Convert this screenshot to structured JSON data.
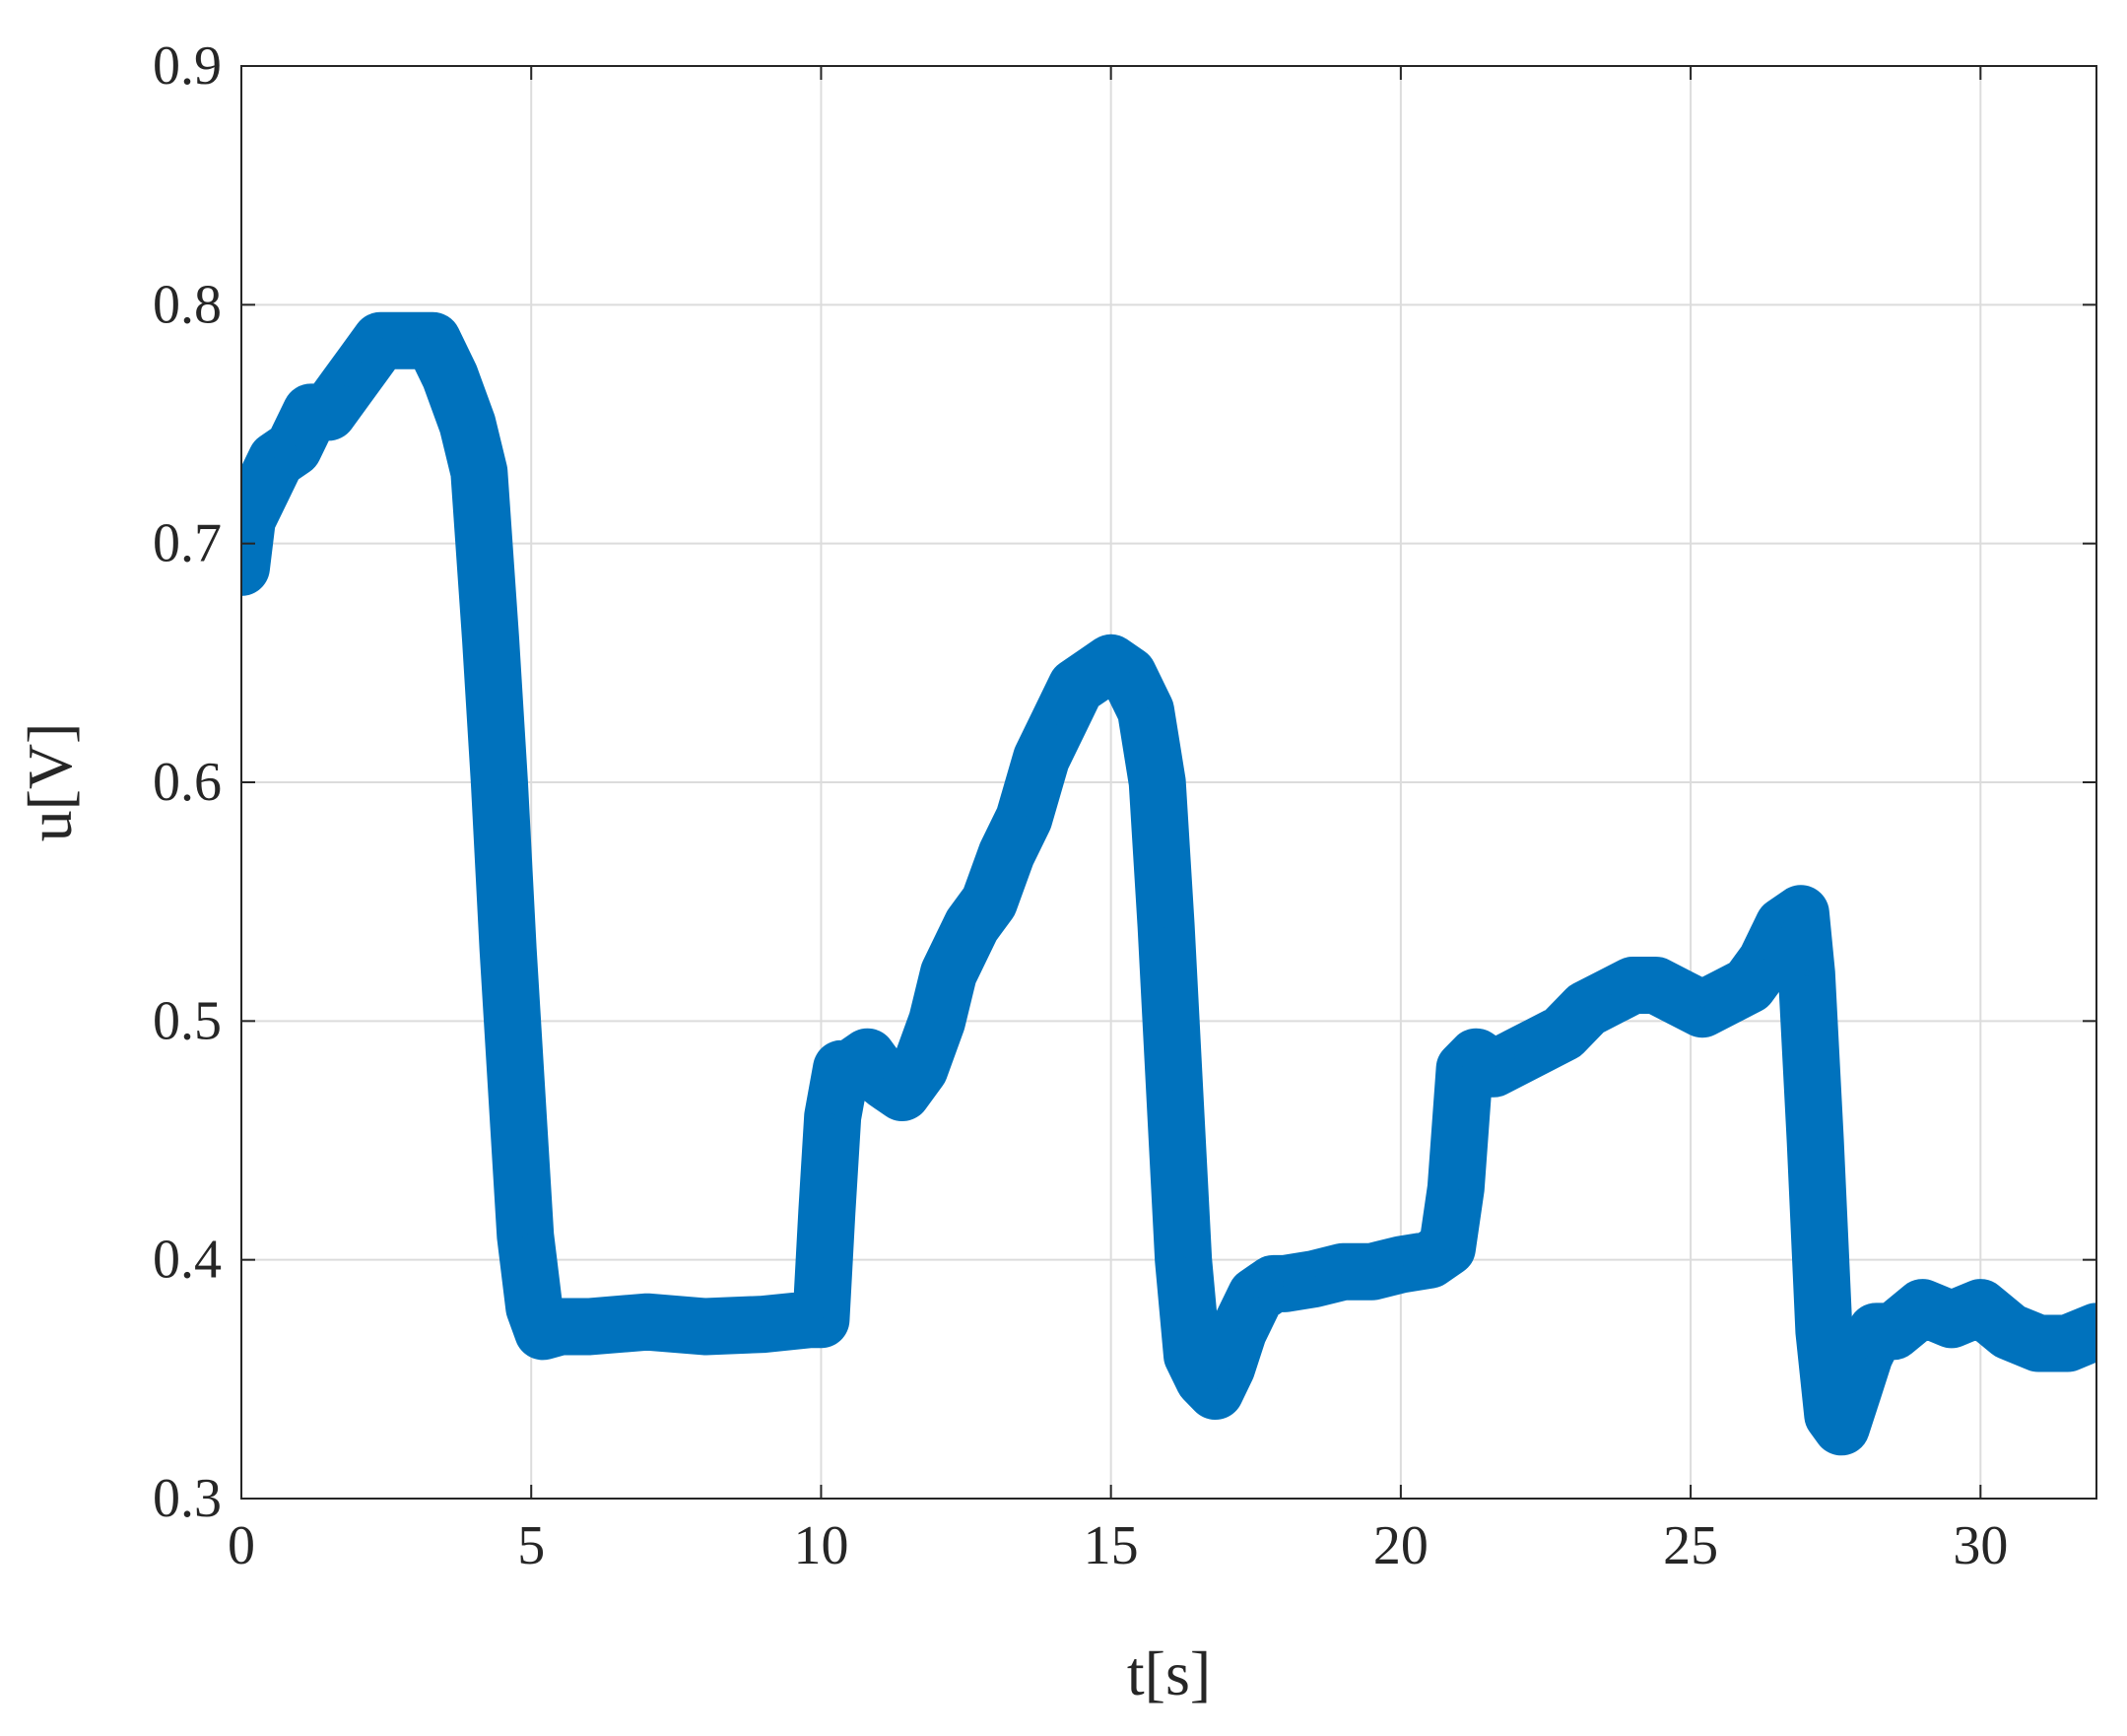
{
  "chart_data": {
    "type": "line",
    "title": "",
    "xlabel": "t[s]",
    "ylabel": "u[V]",
    "xlim": [
      0,
      32
    ],
    "ylim": [
      0.3,
      0.9
    ],
    "xticks": [
      0,
      5,
      10,
      15,
      20,
      25,
      30
    ],
    "yticks": [
      0.3,
      0.4,
      0.5,
      0.6,
      0.7,
      0.8,
      0.9
    ],
    "xtick_labels": [
      "0",
      "5",
      "10",
      "15",
      "20",
      "25",
      "30"
    ],
    "ytick_labels": [
      "0.3",
      "0.4",
      "0.5",
      "0.6",
      "0.7",
      "0.8",
      "0.9"
    ],
    "grid": true,
    "line_color": "#0072BD",
    "series": [
      {
        "x": [
          0.0,
          0.1,
          0.3,
          0.6,
          0.9,
          1.2,
          1.5,
          1.8,
          2.1,
          2.4,
          2.7,
          3.0,
          3.3,
          3.6,
          3.9,
          4.1,
          4.3,
          4.45,
          4.6,
          4.75,
          4.9,
          5.05,
          5.2,
          5.5,
          6.0,
          7.0,
          8.0,
          9.0,
          9.8,
          10.0,
          10.1,
          10.2,
          10.35,
          10.5,
          10.8,
          11.1,
          11.4,
          11.7,
          12.0,
          12.2,
          12.4,
          12.6,
          12.9,
          13.2,
          13.5,
          13.8,
          14.1,
          14.4,
          14.7,
          15.0,
          15.3,
          15.6,
          15.8,
          15.95,
          16.1,
          16.25,
          16.4,
          16.6,
          16.8,
          17.0,
          17.2,
          17.5,
          17.8,
          18.0,
          18.5,
          19.0,
          19.5,
          20.0,
          20.5,
          20.8,
          20.95,
          21.1,
          21.3,
          21.6,
          22.0,
          22.4,
          22.8,
          23.2,
          23.6,
          24.0,
          24.4,
          24.8,
          25.2,
          25.6,
          26.0,
          26.3,
          26.6,
          26.9,
          27.0,
          27.15,
          27.3,
          27.45,
          27.6,
          27.8,
          28.0,
          28.2,
          28.5,
          29.0,
          29.5,
          30.0,
          30.5,
          31.0,
          31.5,
          32.0
        ],
        "y": [
          0.69,
          0.71,
          0.72,
          0.735,
          0.74,
          0.755,
          0.755,
          0.765,
          0.775,
          0.785,
          0.785,
          0.785,
          0.785,
          0.77,
          0.75,
          0.73,
          0.66,
          0.6,
          0.53,
          0.47,
          0.41,
          0.38,
          0.37,
          0.372,
          0.372,
          0.374,
          0.372,
          0.373,
          0.375,
          0.375,
          0.42,
          0.46,
          0.48,
          0.48,
          0.485,
          0.475,
          0.47,
          0.48,
          0.5,
          0.52,
          0.53,
          0.54,
          0.55,
          0.57,
          0.585,
          0.61,
          0.625,
          0.64,
          0.645,
          0.65,
          0.645,
          0.63,
          0.6,
          0.54,
          0.47,
          0.4,
          0.36,
          0.35,
          0.345,
          0.355,
          0.37,
          0.385,
          0.39,
          0.39,
          0.392,
          0.395,
          0.395,
          0.398,
          0.4,
          0.405,
          0.43,
          0.48,
          0.485,
          0.48,
          0.485,
          0.49,
          0.495,
          0.505,
          0.51,
          0.515,
          0.515,
          0.51,
          0.505,
          0.51,
          0.515,
          0.525,
          0.54,
          0.545,
          0.52,
          0.45,
          0.37,
          0.335,
          0.33,
          0.345,
          0.36,
          0.37,
          0.37,
          0.38,
          0.375,
          0.38,
          0.37,
          0.365,
          0.365,
          0.37
        ]
      }
    ]
  }
}
